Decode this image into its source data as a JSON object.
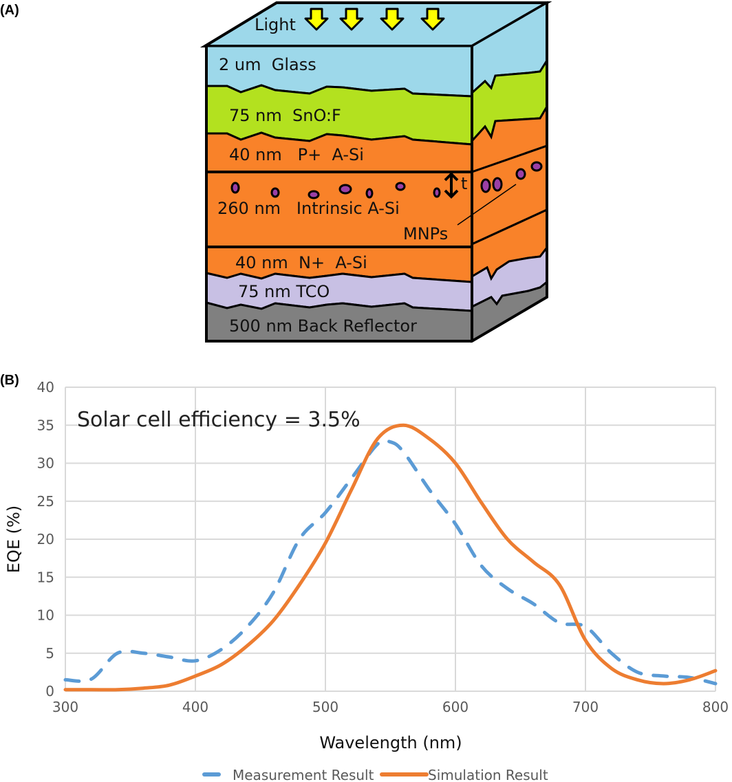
{
  "panels": {
    "a_label": "(A)",
    "b_label": "(B)"
  },
  "diagram": {
    "light_label": "Light",
    "arrow_count": 4,
    "layers": [
      {
        "label": "2 um  Glass",
        "color": "#9dd8ea"
      },
      {
        "label": "75 nm  SnO:F",
        "color": "#b3e11f"
      },
      {
        "label": "40 nm   P+  A-Si",
        "color": "#f98229"
      },
      {
        "label": "260 nm   Intrinsic A-Si",
        "color": "#f98229"
      },
      {
        "label": "40 nm  N+  A-Si",
        "color": "#f98229"
      },
      {
        "label": "75 nm TCO",
        "color": "#c8c0e4"
      },
      {
        "label": "500 nm Back Reflector",
        "color": "#808080"
      }
    ],
    "thickness_label": "t",
    "mnps_label": "MNPs",
    "arrow_color": "#ffff00",
    "particle_color": "#9b3fa5"
  },
  "chart_data": {
    "type": "line",
    "title": "",
    "annotation": "Solar cell efficiency = 3.5%",
    "xlabel": "Wavelength (nm)",
    "ylabel": "EQE (%)",
    "xlim": [
      300,
      800
    ],
    "ylim": [
      0,
      40
    ],
    "xticks": [
      300,
      400,
      500,
      600,
      700,
      800
    ],
    "yticks": [
      0,
      5,
      10,
      15,
      20,
      25,
      30,
      35,
      40
    ],
    "grid": true,
    "legend_position": "bottom",
    "series": [
      {
        "name": "Measurement Result",
        "color": "#5b9bd5",
        "style": "dashed",
        "x": [
          300,
          320,
          340,
          360,
          380,
          400,
          420,
          440,
          460,
          480,
          500,
          520,
          540,
          550,
          560,
          580,
          600,
          620,
          640,
          660,
          680,
          700,
          720,
          740,
          760,
          780,
          800
        ],
        "y": [
          1.5,
          1.6,
          5.0,
          5.0,
          4.5,
          4.0,
          5.5,
          8.5,
          13.0,
          20.0,
          23.5,
          28.0,
          32.5,
          32.8,
          31.5,
          26.5,
          22.0,
          16.5,
          13.5,
          11.5,
          9.0,
          8.5,
          5.0,
          2.5,
          2.0,
          1.8,
          1.0
        ]
      },
      {
        "name": "Simulation Result",
        "color": "#ed7d31",
        "style": "solid",
        "x": [
          300,
          320,
          340,
          360,
          380,
          400,
          420,
          440,
          460,
          480,
          500,
          520,
          540,
          560,
          580,
          600,
          620,
          640,
          660,
          680,
          700,
          720,
          740,
          760,
          780,
          800
        ],
        "y": [
          0.2,
          0.2,
          0.2,
          0.4,
          0.8,
          2.0,
          3.5,
          6.0,
          9.3,
          14.0,
          19.5,
          26.5,
          33.2,
          35.0,
          33.2,
          30.0,
          24.8,
          20.0,
          17.0,
          14.0,
          6.7,
          3.0,
          1.5,
          1.0,
          1.5,
          2.7
        ]
      }
    ]
  }
}
